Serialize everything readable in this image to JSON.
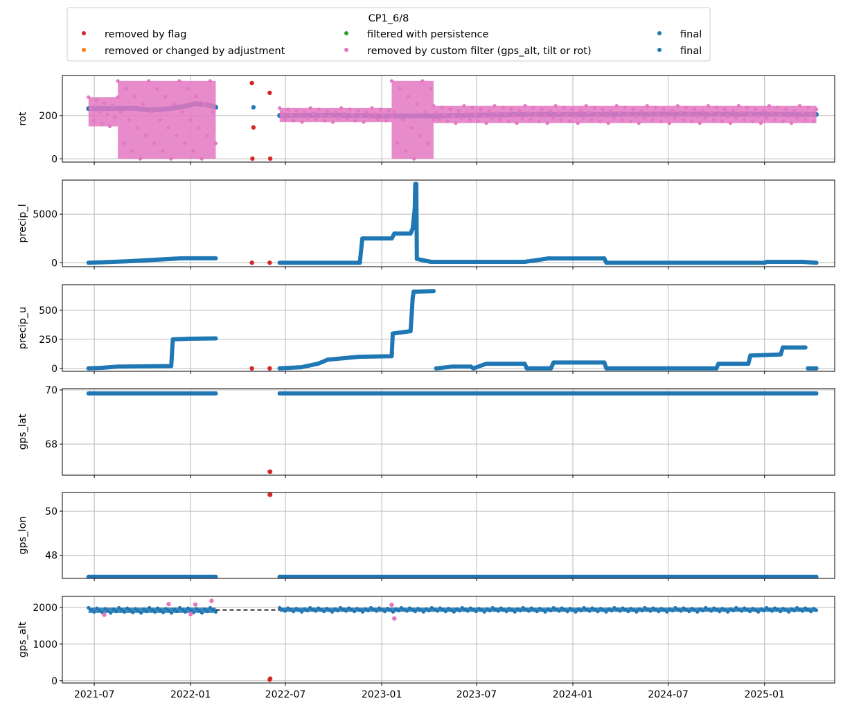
{
  "legend": {
    "title": "CP1_6/8",
    "entries": [
      {
        "label": "removed by flag",
        "color": "#d62728"
      },
      {
        "label": "removed or changed by adjustment",
        "color": "#ff7f0e"
      },
      {
        "label": "filtered with persistence",
        "color": "#2ca02c"
      },
      {
        "label": "removed by custom filter (gps_alt, tilt or rot)",
        "color": "#e377c2"
      },
      {
        "label": "final",
        "color": "#1f77b4"
      },
      {
        "label": "final",
        "color": "#1f77b4"
      }
    ]
  },
  "chart_data": {
    "type": "scatter",
    "x_axis": {
      "type": "date",
      "range": [
        "2021-05-01",
        "2025-05-15"
      ],
      "ticks": [
        "2021-07",
        "2022-01",
        "2022-07",
        "2023-01",
        "2023-07",
        "2024-01",
        "2024-07",
        "2025-01"
      ]
    },
    "grid": true,
    "panels": [
      {
        "ylabel": "rot",
        "ylim": [
          -15,
          385
        ],
        "yticks": [
          0,
          200
        ],
        "series": [
          {
            "name": "final",
            "color": "#1f77b4",
            "style": "points",
            "segments": [
              {
                "points": [
                  [
                    "2021-06-20",
                    232
                  ],
                  [
                    "2021-08-01",
                    233
                  ],
                  [
                    "2021-09-15",
                    234
                  ],
                  [
                    "2021-10-15",
                    225
                  ],
                  [
                    "2021-11-15",
                    230
                  ],
                  [
                    "2021-12-15",
                    240
                  ],
                  [
                    "2022-01-10",
                    255
                  ],
                  [
                    "2022-02-01",
                    250
                  ],
                  [
                    "2022-02-18",
                    238
                  ]
                ]
              },
              {
                "points": [
                  [
                    "2022-06-20",
                    200
                  ],
                  [
                    "2022-10-01",
                    202
                  ],
                  [
                    "2023-01-01",
                    198
                  ],
                  [
                    "2023-04-01",
                    198
                  ],
                  [
                    "2023-07-01",
                    202
                  ],
                  [
                    "2023-10-01",
                    205
                  ],
                  [
                    "2024-01-01",
                    205
                  ],
                  [
                    "2024-07-01",
                    207
                  ],
                  [
                    "2025-01-01",
                    206
                  ],
                  [
                    "2025-04-10",
                    205
                  ]
                ]
              }
            ],
            "extra": [
              [
                "2022-05-01",
                238
              ]
            ]
          },
          {
            "name": "removed by custom filter (gps_alt, tilt or rot)",
            "color": "#e377c2",
            "style": "band",
            "segments": [
              {
                "from": "2021-06-20",
                "to": "2021-08-15",
                "lo": 150,
                "hi": 285
              },
              {
                "from": "2021-08-15",
                "to": "2022-02-18",
                "lo": 0,
                "hi": 360
              },
              {
                "from": "2022-06-20",
                "to": "2023-01-20",
                "lo": 170,
                "hi": 235
              },
              {
                "from": "2023-01-20",
                "to": "2023-04-10",
                "lo": 0,
                "hi": 360
              },
              {
                "from": "2023-04-10",
                "to": "2025-04-10",
                "lo": 165,
                "hi": 245
              }
            ]
          },
          {
            "name": "removed by flag",
            "color": "#d62728",
            "style": "points",
            "points": [
              [
                "2022-04-28",
                350
              ],
              [
                "2022-04-29",
                1
              ],
              [
                "2022-05-01",
                145
              ],
              [
                "2022-06-01",
                305
              ],
              [
                "2022-06-02",
                1
              ]
            ]
          }
        ]
      },
      {
        "ylabel": "precip_l",
        "ylim": [
          -400,
          8500
        ],
        "yticks": [
          0,
          5000
        ],
        "series": [
          {
            "name": "final",
            "color": "#1f77b4",
            "style": "step",
            "segments": [
              {
                "points": [
                  [
                    "2021-06-20",
                    0
                  ],
                  [
                    "2021-09-01",
                    150
                  ],
                  [
                    "2021-12-15",
                    460
                  ],
                  [
                    "2022-02-18",
                    460
                  ]
                ]
              },
              {
                "points": [
                  [
                    "2022-06-20",
                    0
                  ],
                  [
                    "2022-11-20",
                    0
                  ],
                  [
                    "2022-11-25",
                    2500
                  ],
                  [
                    "2023-01-20",
                    2500
                  ],
                  [
                    "2023-01-25",
                    3000
                  ],
                  [
                    "2023-02-25",
                    3000
                  ],
                  [
                    "2023-03-01",
                    3500
                  ],
                  [
                    "2023-03-03",
                    4500
                  ],
                  [
                    "2023-03-05",
                    5500
                  ],
                  [
                    "2023-03-06",
                    8100
                  ],
                  [
                    "2023-03-08",
                    8100
                  ],
                  [
                    "2023-03-09",
                    400
                  ],
                  [
                    "2023-04-05",
                    100
                  ],
                  [
                    "2023-10-01",
                    100
                  ],
                  [
                    "2023-11-15",
                    450
                  ],
                  [
                    "2024-03-01",
                    450
                  ],
                  [
                    "2024-03-05",
                    0
                  ],
                  [
                    "2025-01-01",
                    0
                  ],
                  [
                    "2025-01-05",
                    100
                  ],
                  [
                    "2025-03-15",
                    100
                  ],
                  [
                    "2025-04-10",
                    0
                  ]
                ]
              }
            ]
          },
          {
            "name": "removed by flag",
            "color": "#d62728",
            "style": "points",
            "points": [
              [
                "2022-04-28",
                0
              ],
              [
                "2022-06-01",
                0
              ]
            ]
          }
        ]
      },
      {
        "ylabel": "precip_u",
        "ylim": [
          -25,
          720
        ],
        "yticks": [
          0,
          250,
          500
        ],
        "series": [
          {
            "name": "final",
            "color": "#1f77b4",
            "style": "step",
            "segments": [
              {
                "points": [
                  [
                    "2021-06-20",
                    0
                  ],
                  [
                    "2021-07-15",
                    5
                  ],
                  [
                    "2021-08-15",
                    15
                  ],
                  [
                    "2021-11-25",
                    20
                  ],
                  [
                    "2021-11-28",
                    250
                  ],
                  [
                    "2022-01-01",
                    255
                  ],
                  [
                    "2022-02-18",
                    258
                  ]
                ]
              },
              {
                "points": [
                  [
                    "2022-06-20",
                    0
                  ],
                  [
                    "2022-08-01",
                    10
                  ],
                  [
                    "2022-09-01",
                    40
                  ],
                  [
                    "2022-09-20",
                    75
                  ],
                  [
                    "2022-11-20",
                    100
                  ],
                  [
                    "2023-01-20",
                    105
                  ],
                  [
                    "2023-01-22",
                    300
                  ],
                  [
                    "2023-02-25",
                    320
                  ],
                  [
                    "2023-02-27",
                    450
                  ],
                  [
                    "2023-03-01",
                    600
                  ],
                  [
                    "2023-03-03",
                    660
                  ],
                  [
                    "2023-04-10",
                    665
                  ]
                ]
              },
              {
                "points": [
                  [
                    "2023-04-15",
                    0
                  ],
                  [
                    "2023-05-15",
                    15
                  ],
                  [
                    "2023-06-20",
                    15
                  ],
                  [
                    "2023-06-25",
                    0
                  ],
                  [
                    "2023-07-20",
                    40
                  ],
                  [
                    "2023-10-01",
                    40
                  ],
                  [
                    "2023-10-05",
                    0
                  ],
                  [
                    "2023-11-20",
                    0
                  ],
                  [
                    "2023-11-25",
                    50
                  ],
                  [
                    "2024-03-01",
                    50
                  ],
                  [
                    "2024-03-05",
                    0
                  ],
                  [
                    "2024-10-01",
                    0
                  ],
                  [
                    "2024-10-05",
                    40
                  ],
                  [
                    "2024-12-01",
                    40
                  ],
                  [
                    "2024-12-05",
                    110
                  ],
                  [
                    "2025-02-01",
                    120
                  ],
                  [
                    "2025-02-05",
                    180
                  ],
                  [
                    "2025-03-20",
                    180
                  ]
                ]
              },
              {
                "points": [
                  [
                    "2025-03-25",
                    0
                  ],
                  [
                    "2025-04-10",
                    0
                  ]
                ]
              }
            ]
          },
          {
            "name": "removed by flag",
            "color": "#d62728",
            "style": "points",
            "points": [
              [
                "2022-04-28",
                0
              ],
              [
                "2022-06-01",
                0
              ]
            ]
          }
        ]
      },
      {
        "ylabel": "gps_lat",
        "ylim": [
          66.85,
          70.05
        ],
        "yticks": [
          68,
          70
        ],
        "series": [
          {
            "name": "final",
            "color": "#1f77b4",
            "style": "line",
            "segments": [
              {
                "points": [
                  [
                    "2021-06-20",
                    69.87
                  ],
                  [
                    "2022-02-18",
                    69.87
                  ]
                ]
              },
              {
                "points": [
                  [
                    "2022-06-20",
                    69.87
                  ],
                  [
                    "2025-04-10",
                    69.87
                  ]
                ]
              }
            ]
          },
          {
            "name": "removed by flag",
            "color": "#d62728",
            "style": "points",
            "points": [
              [
                "2022-06-01",
                66.98
              ],
              [
                "2022-06-02",
                66.98
              ]
            ]
          }
        ]
      },
      {
        "ylabel": "gps_lon",
        "ylim": [
          46.95,
          50.85
        ],
        "yticks": [
          48,
          50
        ],
        "series": [
          {
            "name": "final",
            "color": "#1f77b4",
            "style": "line",
            "segments": [
              {
                "points": [
                  [
                    "2021-06-20",
                    47.02
                  ],
                  [
                    "2022-02-18",
                    47.02
                  ]
                ]
              },
              {
                "points": [
                  [
                    "2022-06-20",
                    47.02
                  ],
                  [
                    "2025-04-10",
                    47.02
                  ]
                ]
              }
            ]
          },
          {
            "name": "removed by flag",
            "color": "#d62728",
            "style": "points",
            "points": [
              [
                "2022-06-01",
                50.75
              ],
              [
                "2022-06-02",
                50.75
              ]
            ]
          }
        ]
      },
      {
        "ylabel": "gps_alt",
        "ylim": [
          -60,
          2300
        ],
        "yticks": [
          0,
          1000,
          2000
        ],
        "series": [
          {
            "name": "final",
            "color": "#1f77b4",
            "style": "band",
            "segments": [
              {
                "from": "2021-06-20",
                "to": "2022-02-18",
                "lo": 1850,
                "hi": 1990
              },
              {
                "from": "2022-06-20",
                "to": "2025-04-10",
                "lo": 1880,
                "hi": 1990
              }
            ]
          },
          {
            "name": "removed by custom filter (gps_alt, tilt or rot)",
            "color": "#e377c2",
            "style": "points",
            "points": [
              [
                "2021-11-20",
                2090
              ],
              [
                "2022-01-10",
                2080
              ],
              [
                "2022-02-10",
                2180
              ],
              [
                "2021-07-20",
                1800
              ],
              [
                "2022-01-01",
                1820
              ],
              [
                "2023-01-20",
                2070
              ],
              [
                "2023-01-25",
                1700
              ]
            ]
          },
          {
            "name": "interpolated gap",
            "color": "#000000",
            "style": "dashed",
            "points": [
              [
                "2022-02-18",
                1930
              ],
              [
                "2022-06-20",
                1930
              ]
            ]
          },
          {
            "name": "removed by flag",
            "color": "#d62728",
            "style": "points",
            "points": [
              [
                "2022-06-01",
                30
              ],
              [
                "2022-06-02",
                60
              ]
            ]
          }
        ]
      }
    ]
  }
}
